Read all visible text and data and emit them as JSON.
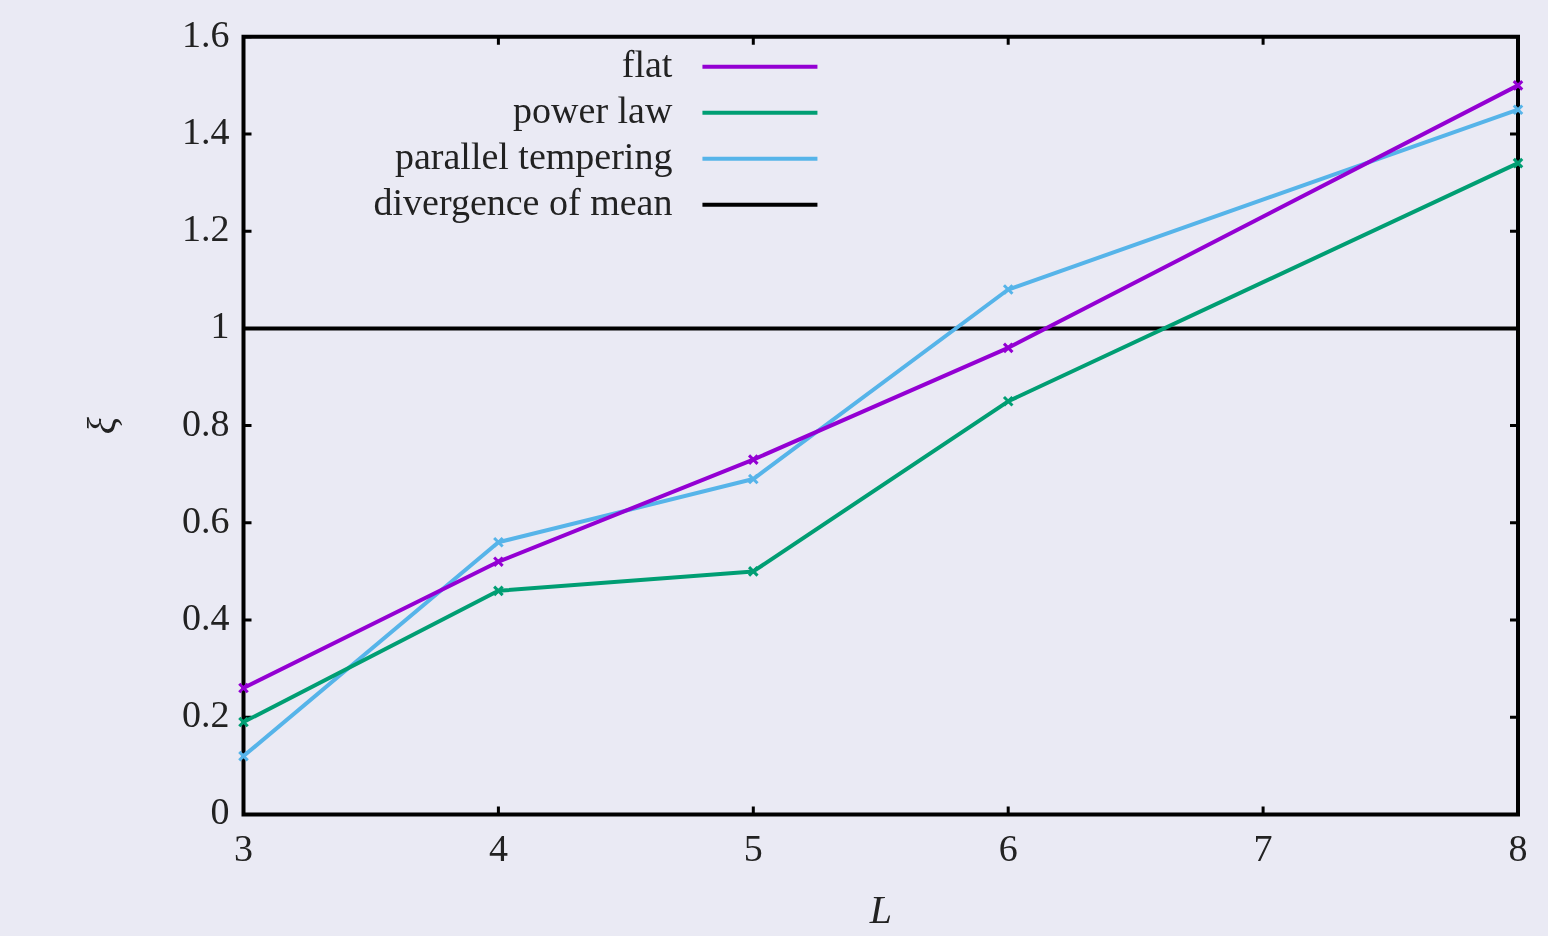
{
  "chart_data": {
    "type": "line",
    "xlabel": "L",
    "ylabel": "ξ",
    "x": [
      3,
      4,
      5,
      6,
      8
    ],
    "series": [
      {
        "name": "flat",
        "color": "#9400d3",
        "values": [
          0.26,
          0.52,
          0.73,
          0.96,
          1.5
        ]
      },
      {
        "name": "power law",
        "color": "#009e73",
        "values": [
          0.19,
          0.46,
          0.5,
          0.85,
          1.34
        ]
      },
      {
        "name": "parallel tempering",
        "color": "#56b4e9",
        "values": [
          0.12,
          0.56,
          0.69,
          1.08,
          1.45
        ]
      }
    ],
    "ref_lines": [
      {
        "axis": "y",
        "value": 1,
        "label": "divergence of mean",
        "color": "#000000"
      }
    ],
    "xlim": [
      3,
      8
    ],
    "xticks": [
      3,
      4,
      5,
      6,
      7,
      8
    ],
    "ylim": [
      0,
      1.6
    ],
    "yticks": [
      0,
      0.2,
      0.4,
      0.6,
      0.8,
      1,
      1.2,
      1.4,
      1.6
    ],
    "grid": false,
    "legend": "top left",
    "marker": "cross",
    "line_style": "solid"
  }
}
